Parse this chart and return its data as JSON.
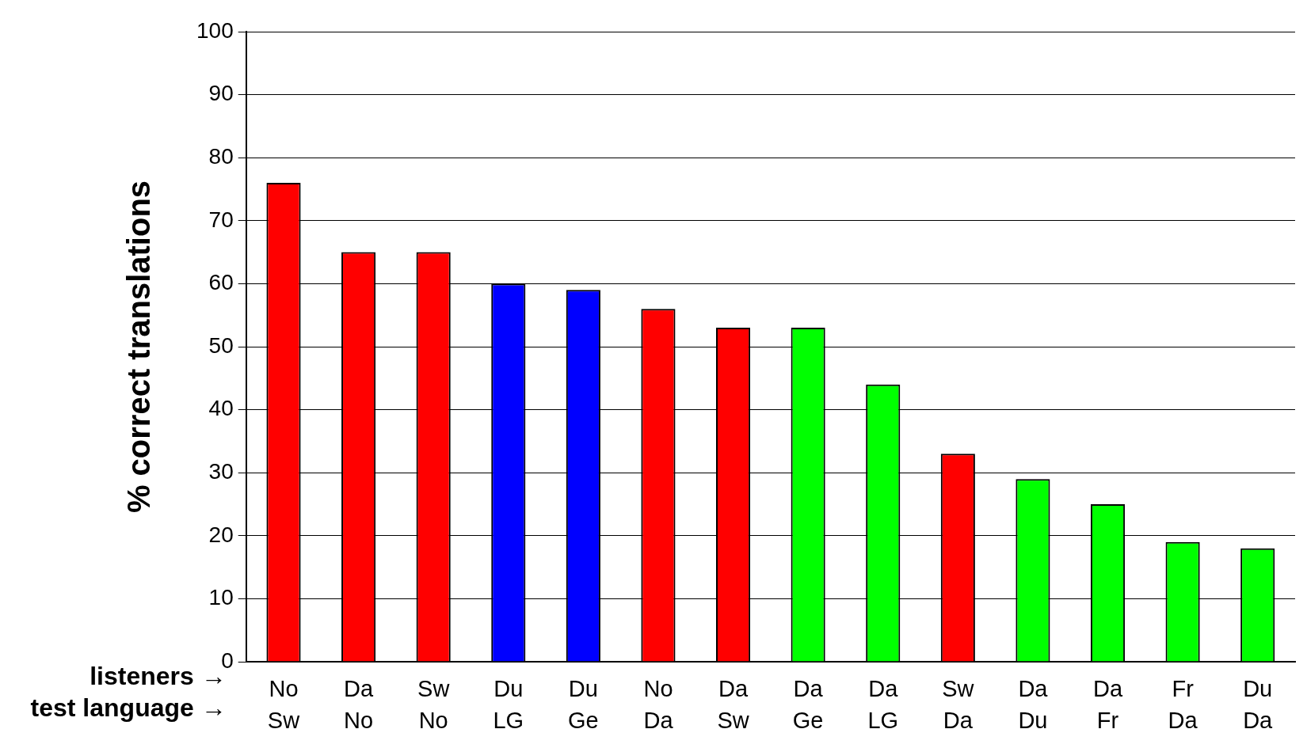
{
  "chart_data": {
    "type": "bar",
    "ylabel": "% correct translations",
    "categories": [
      "No\nSw",
      "Da\nNo",
      "Sw\nNo",
      "Du\nLG",
      "Du\nGe",
      "No\nDa",
      "Da\nSw",
      "Da\nGe",
      "Da\nLG",
      "Sw\nDa",
      "Da\nDu",
      "Da\nFr",
      "Fr\nDa",
      "Du\nDa"
    ],
    "values": [
      76,
      65,
      65,
      60,
      59,
      56,
      53,
      53,
      44,
      33,
      29,
      25,
      19,
      18
    ],
    "colors": [
      "#ff0000",
      "#ff0000",
      "#ff0000",
      "#0000ff",
      "#0000ff",
      "#ff0000",
      "#ff0000",
      "#00ff00",
      "#00ff00",
      "#ff0000",
      "#00ff00",
      "#00ff00",
      "#00ff00",
      "#00ff00"
    ],
    "ylim": [
      0,
      100
    ],
    "yticks": [
      0,
      10,
      20,
      30,
      40,
      50,
      60,
      70,
      80,
      90,
      100
    ],
    "grid": "y",
    "legend": false,
    "annotations": [
      "listeners →",
      "test language →"
    ]
  }
}
